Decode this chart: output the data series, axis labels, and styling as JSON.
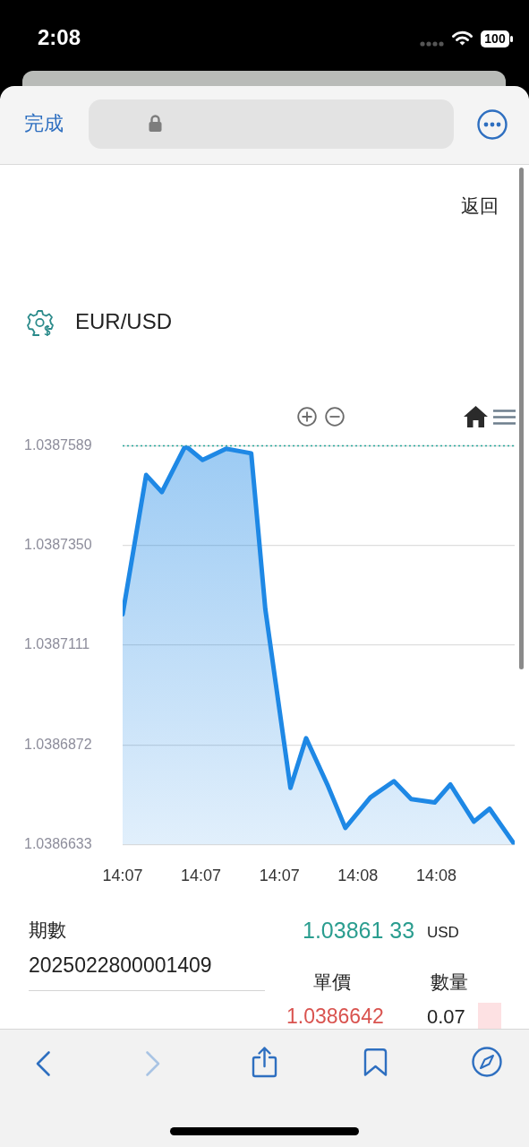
{
  "chart_data": {
    "type": "area",
    "title": "EUR/USD",
    "x": [
      14.1125,
      14.114,
      14.115,
      14.1165,
      14.1176,
      14.1191,
      14.1207,
      14.1216,
      14.1232,
      14.1242,
      14.1256,
      14.1267,
      14.1283,
      14.1298,
      14.1309,
      14.1324,
      14.1334,
      14.1349,
      14.1359,
      14.1375
    ],
    "values": [
      1.0387185,
      1.0387519,
      1.0387478,
      1.0387589,
      1.0387555,
      1.0387582,
      1.0387571,
      1.0387197,
      1.0386769,
      1.0386888,
      1.0386773,
      1.0386673,
      1.0386746,
      1.0386785,
      1.0386742,
      1.0386734,
      1.0386777,
      1.0386688,
      1.0386719,
      1.0386633
    ],
    "color": "#1e88e5",
    "marker": "none",
    "xlim": [
      14.1125,
      14.1375
    ],
    "xticks": [
      {
        "value": 14.1125,
        "label": "14:07"
      },
      {
        "value": 14.1175,
        "label": "14:07"
      },
      {
        "value": 14.1225,
        "label": "14:07"
      },
      {
        "value": 14.1275,
        "label": "14:08"
      },
      {
        "value": 14.1325,
        "label": "14:08"
      }
    ],
    "ylim": [
      1.0386633,
      1.0387589
    ],
    "yticks": [
      1.0386633,
      1.0386872,
      1.0387111,
      {
        "value": 1.038735,
        "label": "1.0387350"
      },
      1.0387589
    ],
    "grid": "y",
    "ref_lines": [
      {
        "axis": "y",
        "value": 1.0387589,
        "color": "#26a69a",
        "line_style": "dotted"
      }
    ],
    "annotations": [
      "2:08",
      "100",
      "完成",
      "返回",
      "期數",
      "1.03861 33",
      "USD",
      "2025022800001409",
      "單價",
      "數量",
      "1.0386642",
      "0.07"
    ]
  }
}
